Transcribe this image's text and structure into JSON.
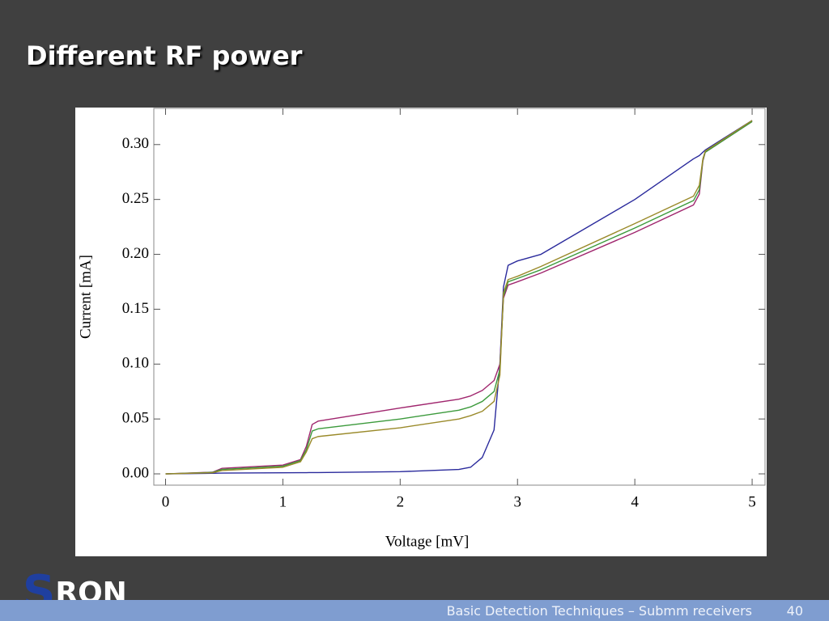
{
  "slide_title": "Different RF power",
  "chart_data": {
    "type": "line",
    "xlabel": "Voltage [mV]",
    "ylabel": "Current [mA]",
    "x": [
      0,
      0.4,
      0.48,
      1.0,
      1.15,
      1.2,
      1.25,
      1.3,
      2,
      2.5,
      2.6,
      2.7,
      2.8,
      2.85,
      2.88,
      2.92,
      3,
      3.2,
      4,
      4.5,
      4.55,
      4.58,
      4.6,
      5
    ],
    "series": [
      {
        "color": "#2a2a9c",
        "values": [
          0,
          0.0005,
          0.0007,
          0.001,
          0.0011,
          0.0011,
          0.0012,
          0.0012,
          0.002,
          0.004,
          0.006,
          0.015,
          0.04,
          0.1,
          0.17,
          0.19,
          0.194,
          0.2,
          0.25,
          0.287,
          0.29,
          0.293,
          0.295,
          0.322
        ]
      },
      {
        "color": "#a0266e",
        "values": [
          0,
          0.0015,
          0.005,
          0.008,
          0.013,
          0.025,
          0.045,
          0.048,
          0.06,
          0.068,
          0.071,
          0.076,
          0.085,
          0.1,
          0.16,
          0.172,
          0.175,
          0.183,
          0.22,
          0.245,
          0.255,
          0.285,
          0.293,
          0.321
        ]
      },
      {
        "color": "#3c9a3c",
        "values": [
          0,
          0.0013,
          0.004,
          0.007,
          0.012,
          0.022,
          0.039,
          0.041,
          0.05,
          0.058,
          0.061,
          0.066,
          0.075,
          0.095,
          0.162,
          0.175,
          0.178,
          0.186,
          0.224,
          0.249,
          0.259,
          0.286,
          0.293,
          0.321
        ]
      },
      {
        "color": "#9a8a2a",
        "values": [
          0,
          0.001,
          0.003,
          0.006,
          0.011,
          0.02,
          0.032,
          0.034,
          0.042,
          0.05,
          0.053,
          0.057,
          0.066,
          0.09,
          0.165,
          0.177,
          0.18,
          0.189,
          0.228,
          0.253,
          0.263,
          0.287,
          0.294,
          0.322
        ]
      }
    ],
    "xlim": [
      -0.1,
      5.11
    ],
    "ylim": [
      -0.0103,
      0.333
    ],
    "xticks": [
      0,
      1,
      2,
      3,
      4,
      5
    ],
    "yticks": [
      {
        "value": 0,
        "label": "0.00"
      },
      {
        "value": 0.05,
        "label": "0.05"
      },
      {
        "value": 0.1,
        "label": "0.10"
      },
      {
        "value": 0.15,
        "label": "0.15"
      },
      {
        "value": 0.2,
        "label": "0.20"
      },
      {
        "value": 0.25,
        "label": "0.25"
      },
      {
        "value": 0.3,
        "label": "0.30"
      }
    ],
    "grid": false
  },
  "logo": {
    "mark": "S",
    "text": "RON"
  },
  "footer": {
    "text": "Basic Detection Techniques – Submm receivers",
    "page": "40"
  }
}
